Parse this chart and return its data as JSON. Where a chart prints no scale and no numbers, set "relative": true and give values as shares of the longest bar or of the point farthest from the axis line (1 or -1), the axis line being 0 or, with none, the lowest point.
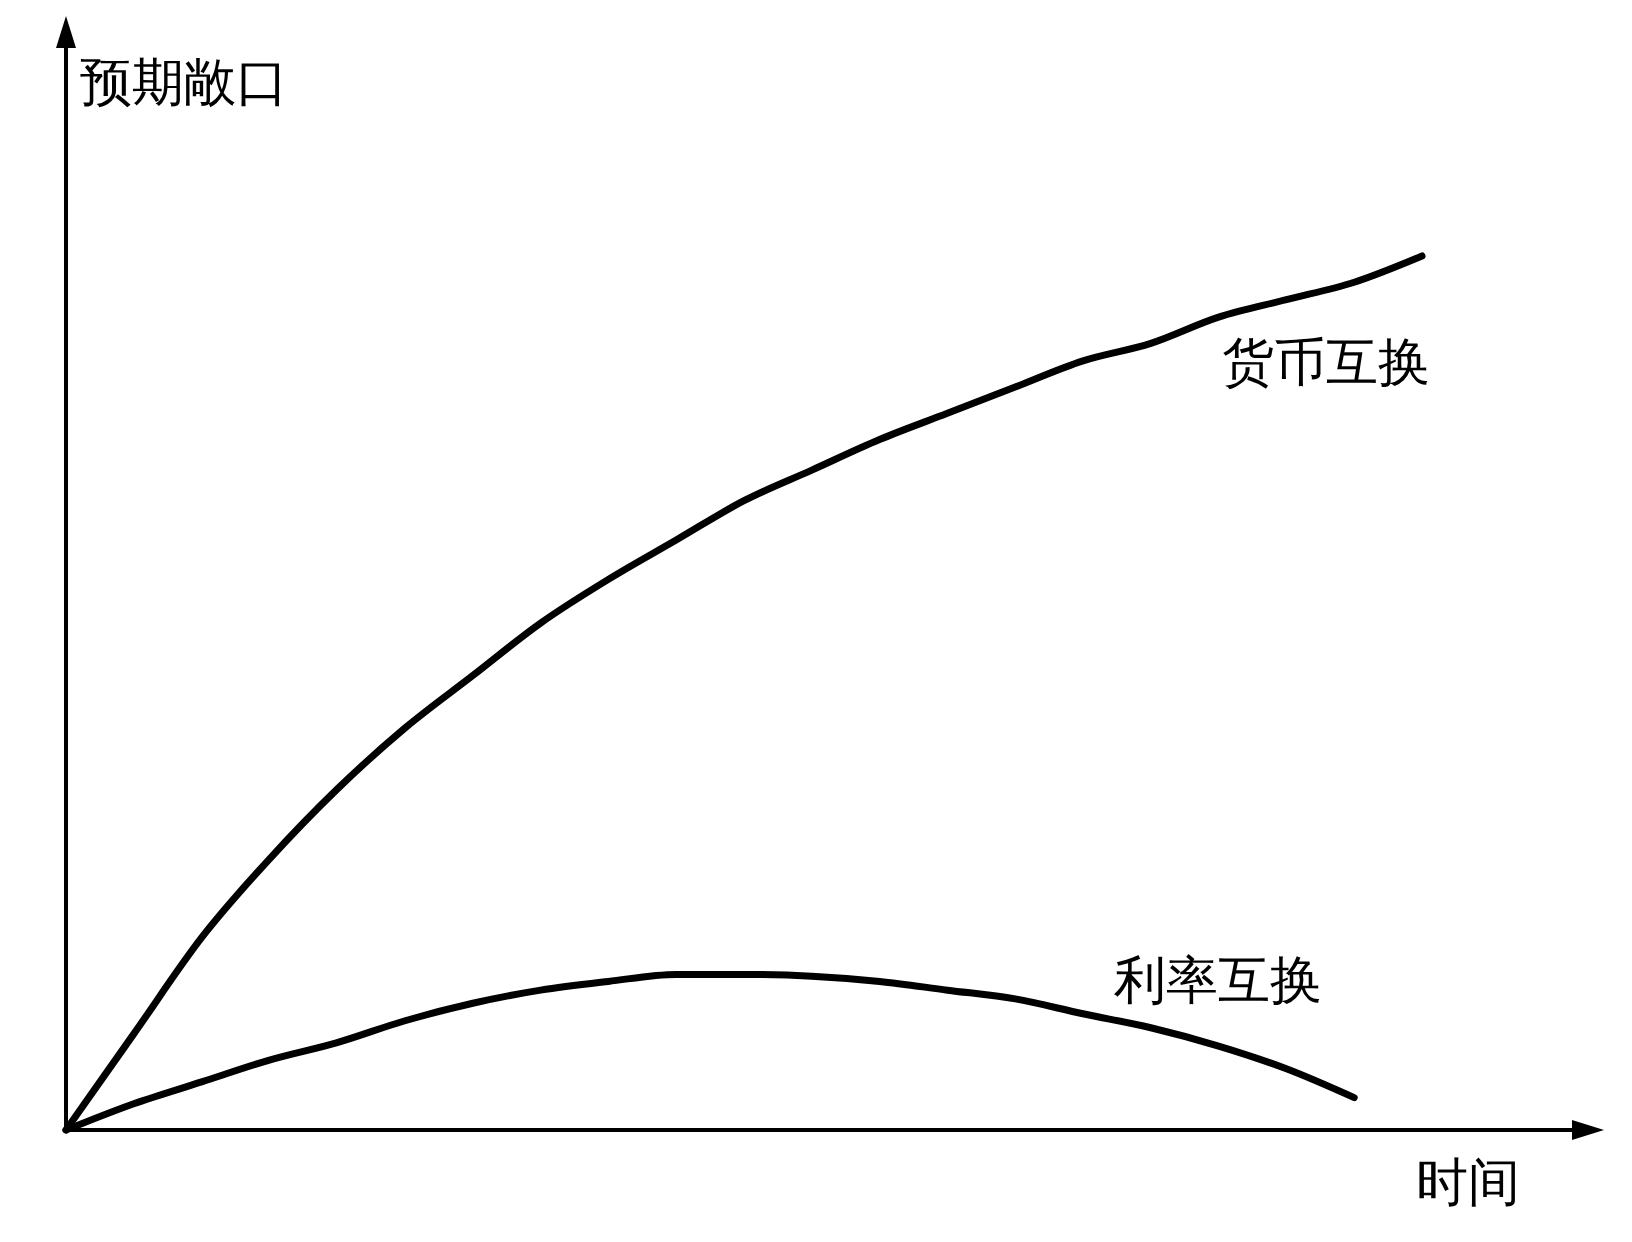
{
  "chart_data": {
    "type": "line",
    "relative": true,
    "xlabel": "时间",
    "ylabel": "预期敞口",
    "categories": [
      null,
      null,
      null,
      null,
      null,
      null,
      null,
      null,
      null,
      null,
      null,
      null,
      null,
      null,
      null,
      null,
      null,
      null,
      null,
      null,
      null
    ],
    "series": [
      {
        "name": "货币互换",
        "color": "#000000",
        "values": [
          0,
          0.11,
          0.22,
          0.31,
          0.39,
          0.46,
          0.52,
          0.58,
          0.63,
          0.675,
          0.72,
          0.755,
          0.79,
          0.82,
          0.85,
          0.88,
          0.9,
          0.93,
          0.95,
          0.97,
          1
        ]
      },
      {
        "name": "利率互换",
        "color": "#000000",
        "values": [
          0,
          0.03,
          0.055,
          0.08,
          0.1,
          0.125,
          0.145,
          0.16,
          0.17,
          0.178,
          0.178,
          0.176,
          0.17,
          0.16,
          0.15,
          0.133,
          0.117,
          0.096,
          0.07,
          0.037,
          null
        ]
      }
    ],
    "marker": "none",
    "line_style": "solid"
  }
}
